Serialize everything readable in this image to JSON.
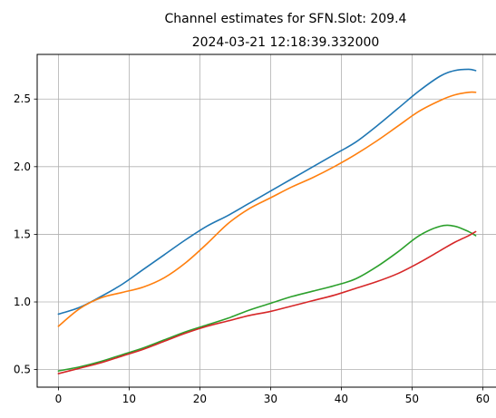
{
  "chart_data": {
    "type": "line",
    "title": "Channel estimates for SFN.Slot: 209.4",
    "subtitle": "2024-03-21 12:18:39.332000",
    "xlabel": "",
    "ylabel": "",
    "xlim": [
      -3,
      62
    ],
    "ylim": [
      0.37,
      2.83
    ],
    "xticks": [
      0,
      10,
      20,
      30,
      40,
      50,
      60
    ],
    "yticks": [
      0.5,
      1.0,
      1.5,
      2.0,
      2.5
    ],
    "xtick_labels": [
      "0",
      "10",
      "20",
      "30",
      "40",
      "50",
      "60"
    ],
    "ytick_labels": [
      "0.5",
      "1.0",
      "1.5",
      "2.0",
      "2.5"
    ],
    "grid": true,
    "legend": "none",
    "x": [
      0,
      3,
      6,
      9,
      12,
      15,
      18,
      21,
      24,
      27,
      30,
      33,
      36,
      39,
      42,
      45,
      48,
      51,
      54,
      56,
      58,
      59
    ],
    "series": [
      {
        "color": "#1f77b4",
        "values": [
          0.91,
          0.96,
          1.04,
          1.13,
          1.24,
          1.35,
          1.46,
          1.56,
          1.64,
          1.73,
          1.82,
          1.91,
          2.0,
          2.09,
          2.18,
          2.3,
          2.43,
          2.56,
          2.67,
          2.71,
          2.72,
          2.71
        ]
      },
      {
        "color": "#ff7f0e",
        "values": [
          0.82,
          0.95,
          1.03,
          1.07,
          1.11,
          1.18,
          1.29,
          1.43,
          1.58,
          1.69,
          1.77,
          1.85,
          1.92,
          2.0,
          2.09,
          2.19,
          2.3,
          2.41,
          2.49,
          2.53,
          2.55,
          2.55
        ]
      },
      {
        "color": "#2ca02c",
        "values": [
          0.49,
          0.52,
          0.56,
          0.61,
          0.66,
          0.72,
          0.78,
          0.83,
          0.88,
          0.94,
          0.99,
          1.04,
          1.08,
          1.12,
          1.17,
          1.26,
          1.37,
          1.49,
          1.56,
          1.56,
          1.52,
          1.49
        ]
      },
      {
        "color": "#d62728",
        "values": [
          0.47,
          0.51,
          0.55,
          0.6,
          0.65,
          0.71,
          0.77,
          0.82,
          0.86,
          0.9,
          0.93,
          0.97,
          1.01,
          1.05,
          1.1,
          1.15,
          1.21,
          1.29,
          1.38,
          1.44,
          1.49,
          1.52
        ]
      }
    ]
  }
}
